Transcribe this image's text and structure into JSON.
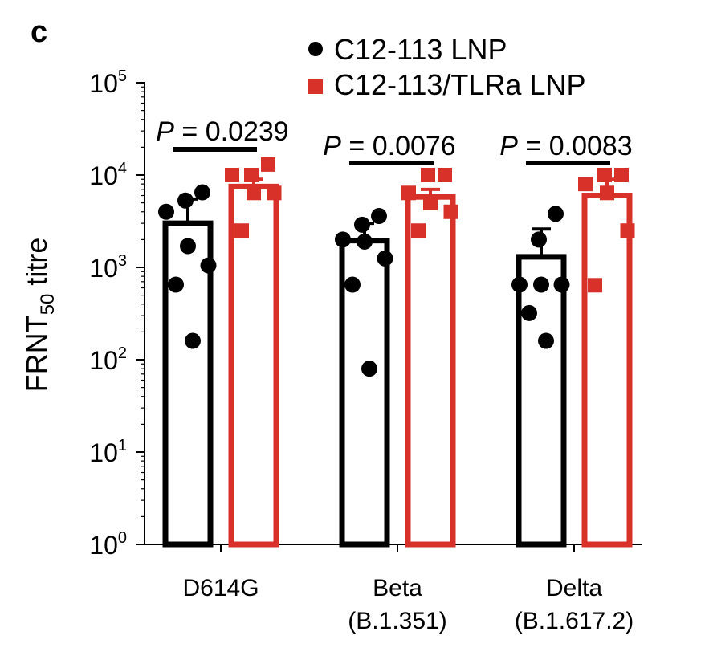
{
  "panel_label": "c",
  "chart_data": {
    "type": "bar",
    "ylabel_main": "FRNT",
    "ylabel_sub": "50",
    "ylabel_tail": " titre",
    "yscale": "log",
    "ylim": [
      1,
      100000
    ],
    "y_ticks": [
      {
        "value": 1,
        "base": "10",
        "exp": "0"
      },
      {
        "value": 10,
        "base": "10",
        "exp": "1"
      },
      {
        "value": 100,
        "base": "10",
        "exp": "2"
      },
      {
        "value": 1000,
        "base": "10",
        "exp": "3"
      },
      {
        "value": 10000,
        "base": "10",
        "exp": "4"
      },
      {
        "value": 100000,
        "base": "10",
        "exp": "5"
      }
    ],
    "categories": [
      {
        "line1": "D614G",
        "line2": ""
      },
      {
        "line1": "Beta",
        "line2": "(B.1.351)"
      },
      {
        "line1": "Delta",
        "line2": "(B.1.617.2)"
      }
    ],
    "legend_position": "top-right",
    "series": [
      {
        "name": "C12-113 LNP",
        "color": "#000000",
        "marker": "circle",
        "values": [
          3000,
          1950,
          1300
        ],
        "error_upper": [
          5500,
          3000,
          2600
        ],
        "points": [
          [
            6500,
            5300,
            4000,
            1700,
            1050,
            650,
            160
          ],
          [
            3600,
            2900,
            2000,
            1900,
            1250,
            650,
            80
          ],
          [
            3800,
            2000,
            650,
            650,
            650,
            320,
            160
          ]
        ]
      },
      {
        "name": "C12-113/TLRa LNP",
        "color": "#d7312a",
        "marker": "square",
        "values": [
          7500,
          5800,
          6000
        ],
        "error_upper": [
          9000,
          7000,
          9000
        ],
        "points": [
          [
            13000,
            10000,
            10000,
            6400,
            6400,
            2500
          ],
          [
            10000,
            10000,
            6400,
            5000,
            4000,
            2500
          ],
          [
            10000,
            10000,
            8000,
            6400,
            2500,
            640
          ]
        ]
      }
    ],
    "annotations": [
      {
        "p_italic": "P",
        "p_rest": " = 0.0239",
        "group": 0
      },
      {
        "p_italic": "P",
        "p_rest": " = 0.0076",
        "group": 1
      },
      {
        "p_italic": "P",
        "p_rest": " = 0.0083",
        "group": 2
      }
    ]
  }
}
